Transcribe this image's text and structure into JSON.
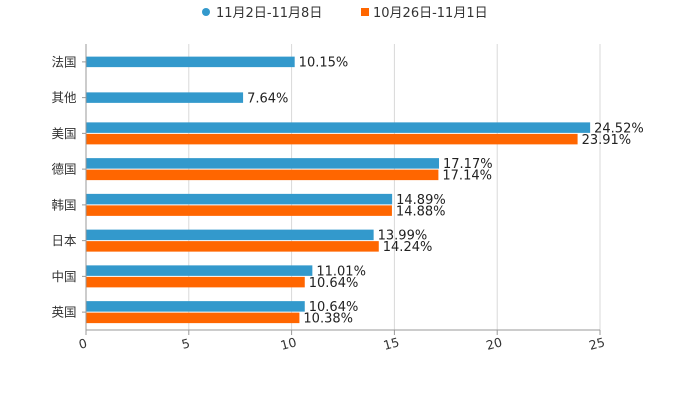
{
  "chart_data": {
    "type": "bar",
    "orientation": "horizontal",
    "categories": [
      "法国",
      "其他",
      "美国",
      "德国",
      "韩国",
      "日本",
      "中国",
      "英国"
    ],
    "series": [
      {
        "name": "11月2日-11月8日",
        "color": "#3399cc",
        "values": [
          10.15,
          7.64,
          24.52,
          17.17,
          14.89,
          13.99,
          11.01,
          10.64
        ],
        "labels": [
          "10.15%",
          "7.64%",
          "24.52%",
          "17.17%",
          "14.89%",
          "13.99%",
          "11.01%",
          "10.64%"
        ]
      },
      {
        "name": "10月26日-11月1日",
        "color": "#ff6600",
        "values": [
          null,
          null,
          23.91,
          17.14,
          14.88,
          14.24,
          10.64,
          10.38
        ],
        "labels": [
          "",
          "",
          "23.91%",
          "17.14%",
          "14.88%",
          "14.24%",
          "10.64%",
          "10.38%"
        ]
      }
    ],
    "x_ticks": [
      "0",
      "5",
      "10",
      "15",
      "20",
      "25"
    ],
    "xlim": [
      0,
      25
    ],
    "grid": true,
    "legend_position": "top-center",
    "title": "",
    "xlabel": "",
    "ylabel": ""
  }
}
